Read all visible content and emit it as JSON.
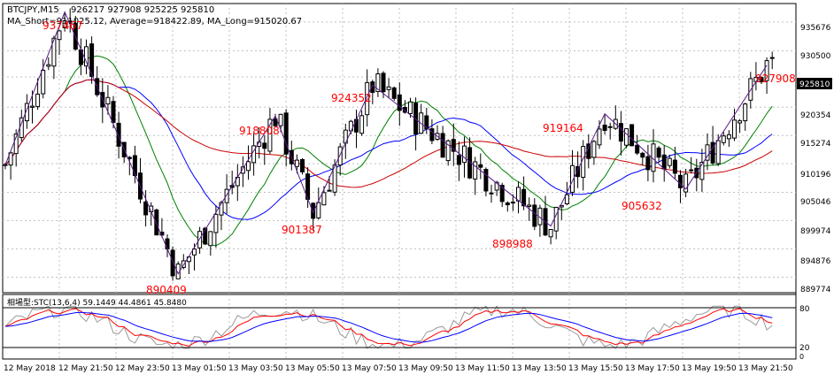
{
  "header": {
    "symbol": "BTCJPY,M15",
    "ohlc": "926217 927908 925225 925810",
    "ma_line": "MA_Short=911025.12,   Average=918422.89,   MA_Long=915020.67"
  },
  "colors": {
    "background": "#ffffff",
    "grid": "#c0c0c0",
    "frame": "#000000",
    "candle": "#000000",
    "zigzag": "#5a1a8a",
    "ma_short": "#008000",
    "ma_average": "#0000ff",
    "ma_long": "#cc0000",
    "peak_label": "#ff0000",
    "current_price_bg": "#000000",
    "current_price_fg": "#ffffff",
    "stc_gray": "#9a9a9a",
    "stc_red": "#ff0000",
    "stc_blue": "#0000ff"
  },
  "price_axis": {
    "ticks": [
      "935676",
      "930500",
      "925810",
      "920354",
      "915274",
      "910196",
      "905046",
      "899974",
      "894876",
      "889774"
    ],
    "current_price": "925810"
  },
  "zigzag_labels": [
    "937467",
    "918808",
    "901387",
    "924352",
    "898988",
    "919164",
    "905632",
    "927908",
    "890409"
  ],
  "indicator": {
    "title": "相場型:STC(13,6,4) 59.1449 44.4861 45.8480",
    "levels": [
      "80",
      "20",
      "0"
    ]
  },
  "time_axis": {
    "labels": [
      "12 May 2018",
      "12 May 21:50",
      "12 May 23:50",
      "13 May 01:50",
      "13 May 03:50",
      "13 May 05:50",
      "13 May 07:50",
      "13 May 09:50",
      "13 May 11:50",
      "13 May 13:50",
      "13 May 15:50",
      "13 May 17:50",
      "13 May 19:50",
      "13 May 21:50"
    ]
  },
  "chart_data": {
    "type": "candlestick",
    "title": "BTCJPY,M15",
    "y_range": [
      887000,
      939000
    ],
    "zigzag": [
      {
        "i": 0,
        "price": 910000
      },
      {
        "i": 11,
        "price": 937467
      },
      {
        "i": 32,
        "price": 890409
      },
      {
        "i": 50,
        "price": 918808
      },
      {
        "i": 57,
        "price": 901387
      },
      {
        "i": 68,
        "price": 924352
      },
      {
        "i": 101,
        "price": 898988
      },
      {
        "i": 111,
        "price": 919164
      },
      {
        "i": 126,
        "price": 905632
      },
      {
        "i": 141,
        "price": 927908
      }
    ],
    "stc_levels": [
      80,
      20,
      0
    ]
  }
}
